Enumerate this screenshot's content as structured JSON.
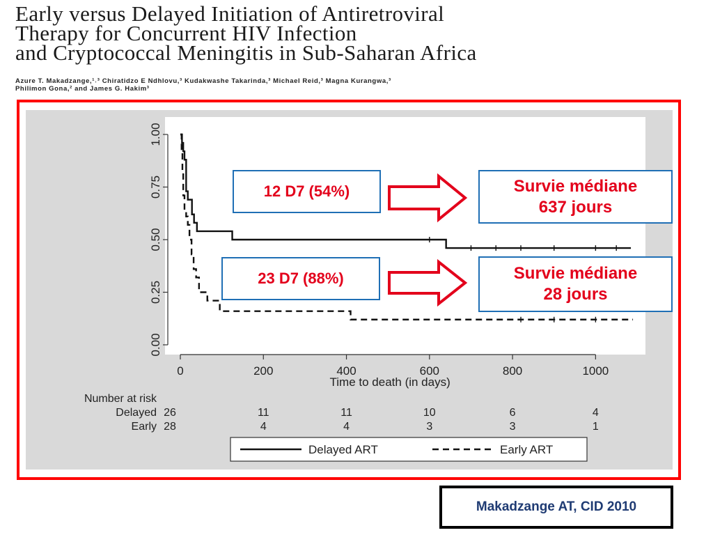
{
  "paper": {
    "title_lines": [
      "Early versus Delayed Initiation of Antiretroviral",
      "Therapy for Concurrent HIV Infection",
      "and Cryptococcal Meningitis in Sub-Saharan Africa"
    ],
    "authors_lines": [
      "Azure T. Makadzange,¹˒³ Chiratidzo E Ndhlovu,³ Kudakwashe Takarinda,³ Michael Reid,³ Magna Kurangwa,³",
      "Philimon Gona,² and James G. Hakim³"
    ]
  },
  "callouts": {
    "delayed_count": "12 D7 (54%)",
    "early_count": "23 D7 (88%)",
    "delayed_survival_line1": "Survie médiane",
    "delayed_survival_line2": "637 jours",
    "early_survival_line1": "Survie médiane",
    "early_survival_line2": "28  jours"
  },
  "citation": "Makadzange AT, CID 2010",
  "colors": {
    "frame": "#ff0000",
    "panel": "#d9d9d9",
    "callout_text": "#e3001b",
    "callout_border": "#1f6fb5",
    "arrow": "#e3001b",
    "citation_text": "#1f3b73"
  },
  "chart_data": {
    "type": "line",
    "subtype": "kaplan-meier",
    "title": "",
    "xlabel": "Time to death (in days)",
    "ylabel": "",
    "xlim": [
      0,
      1100
    ],
    "ylim": [
      0,
      1
    ],
    "x_ticks": [
      0,
      200,
      400,
      600,
      800,
      1000
    ],
    "x_tick_labels": [
      "0",
      "200",
      "400",
      "600",
      "800",
      "1000"
    ],
    "y_ticks": [
      0,
      0.25,
      0.5,
      0.75,
      1
    ],
    "y_tick_labels": [
      "0.00",
      "0.25",
      "0.50",
      "0.75",
      "1.00"
    ],
    "grid": false,
    "series": [
      {
        "name": "Delayed ART",
        "style": "solid",
        "steps": [
          [
            0,
            1.0
          ],
          [
            4,
            0.96
          ],
          [
            7,
            0.92
          ],
          [
            10,
            0.88
          ],
          [
            14,
            0.73
          ],
          [
            18,
            0.69
          ],
          [
            28,
            0.62
          ],
          [
            33,
            0.58
          ],
          [
            40,
            0.54
          ],
          [
            125,
            0.5
          ],
          [
            640,
            0.46
          ],
          [
            1085,
            0.46
          ]
        ],
        "censored_x": [
          600,
          700,
          760,
          820,
          900,
          1000,
          1050
        ]
      },
      {
        "name": "Early ART",
        "style": "dashed",
        "steps": [
          [
            0,
            1.0
          ],
          [
            3,
            0.93
          ],
          [
            5,
            0.82
          ],
          [
            7,
            0.71
          ],
          [
            10,
            0.64
          ],
          [
            14,
            0.61
          ],
          [
            18,
            0.57
          ],
          [
            22,
            0.5
          ],
          [
            27,
            0.43
          ],
          [
            32,
            0.36
          ],
          [
            38,
            0.32
          ],
          [
            45,
            0.25
          ],
          [
            65,
            0.21
          ],
          [
            95,
            0.16
          ],
          [
            410,
            0.12
          ],
          [
            1090,
            0.12
          ]
        ],
        "censored_x": [
          820,
          900,
          1000
        ]
      }
    ],
    "risk_table": {
      "header": "Number at risk",
      "rows": [
        {
          "label": "Delayed",
          "values": [
            "26",
            "11",
            "11",
            "10",
            "6",
            "4"
          ]
        },
        {
          "label": "Early",
          "values": [
            "28",
            "4",
            "4",
            "3",
            "3",
            "1"
          ]
        }
      ]
    },
    "legend": {
      "position": "bottom",
      "entries": [
        {
          "label": "Delayed ART",
          "style": "solid"
        },
        {
          "label": "Early ART",
          "style": "dashed"
        }
      ]
    }
  }
}
